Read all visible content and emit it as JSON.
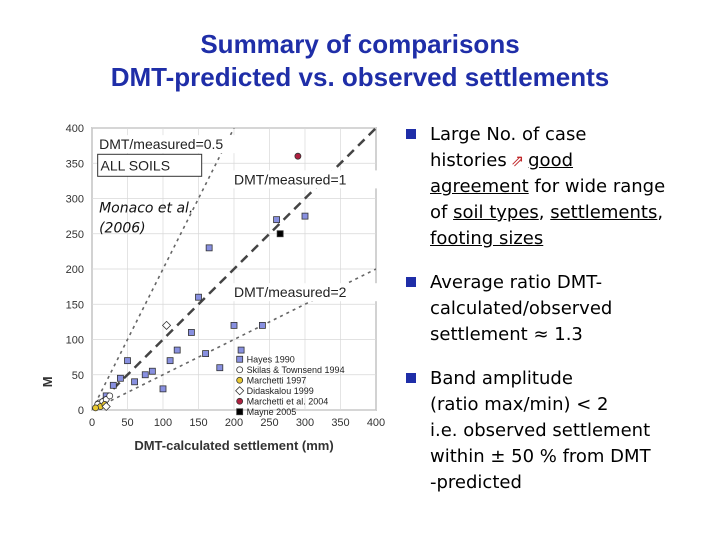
{
  "title_line1": "Summary of comparisons",
  "title_line2": "DMT-predicted vs. observed settlements",
  "bullets": {
    "b1": {
      "t1": "Large No. of case",
      "t2": "histories",
      "t3": "good",
      "t4": "agreement",
      "t5": " for wide range",
      "t6": "of ",
      "t7": "soil types",
      "t8": ", ",
      "t9": "settlements",
      "t10": ",",
      "t11": "footing sizes"
    },
    "b2": {
      "t1": "Average ratio DMT-",
      "t2": "calculated/observed",
      "t3": "settlement ≈ 1.3"
    },
    "b3": {
      "t1": "Band amplitude",
      "t2": "(ratio max/min) < 2",
      "t3": "i.e. observed settlement",
      "t4": "within ± 50 % from  DMT",
      "t5": "-predicted"
    }
  },
  "chart_data": {
    "type": "scatter",
    "xlabel": "DMT-calculated settlement (mm)",
    "ylabel": "M",
    "xlim": [
      0,
      400
    ],
    "ylim": [
      0,
      400
    ],
    "xticks": [
      0,
      50,
      100,
      150,
      200,
      250,
      300,
      350,
      400
    ],
    "yticks": [
      0,
      50,
      100,
      150,
      200,
      250,
      300,
      350,
      400
    ],
    "grid": true,
    "ratio_lines": [
      {
        "label": "DMT/measured=0.5",
        "slope": 2
      },
      {
        "label": "DMT/measured=1",
        "slope": 1
      },
      {
        "label": "DMT/measured=2",
        "slope": 0.5
      }
    ],
    "annotations": {
      "all_soils": "ALL SOILS",
      "citation_line1": "Monaco et al.",
      "citation_line2": "(2006)"
    },
    "series": [
      {
        "name": "Hayes 1990",
        "marker": "square",
        "color": "#8890e0",
        "points": [
          [
            150,
            160
          ],
          [
            165,
            230
          ],
          [
            260,
            270
          ],
          [
            300,
            275
          ],
          [
            140,
            110
          ],
          [
            200,
            120
          ],
          [
            240,
            120
          ],
          [
            160,
            80
          ],
          [
            210,
            85
          ],
          [
            180,
            60
          ],
          [
            110,
            70
          ],
          [
            120,
            85
          ],
          [
            75,
            50
          ],
          [
            85,
            55
          ],
          [
            60,
            40
          ],
          [
            50,
            70
          ],
          [
            40,
            45
          ],
          [
            30,
            35
          ],
          [
            20,
            20
          ],
          [
            100,
            30
          ]
        ]
      },
      {
        "name": "Skilas & Townsend 1994",
        "marker": "circle",
        "color": "#ffffff",
        "points": [
          [
            10,
            10
          ],
          [
            15,
            12
          ],
          [
            20,
            15
          ],
          [
            8,
            8
          ],
          [
            25,
            20
          ]
        ]
      },
      {
        "name": "Marchetti 1997",
        "marker": "circle",
        "color": "#e8c830",
        "points": [
          [
            12,
            5
          ],
          [
            18,
            8
          ],
          [
            5,
            3
          ]
        ]
      },
      {
        "name": "Didaskalou 1999",
        "marker": "diamond",
        "color": "#ffffff",
        "points": [
          [
            105,
            120
          ],
          [
            20,
            5
          ]
        ]
      },
      {
        "name": "Marchetti et al. 2004",
        "marker": "circle",
        "color": "#b02040",
        "points": [
          [
            290,
            360
          ]
        ]
      },
      {
        "name": "Mayne 2005",
        "marker": "square",
        "color": "#000000",
        "points": [
          [
            265,
            250
          ]
        ]
      }
    ]
  }
}
